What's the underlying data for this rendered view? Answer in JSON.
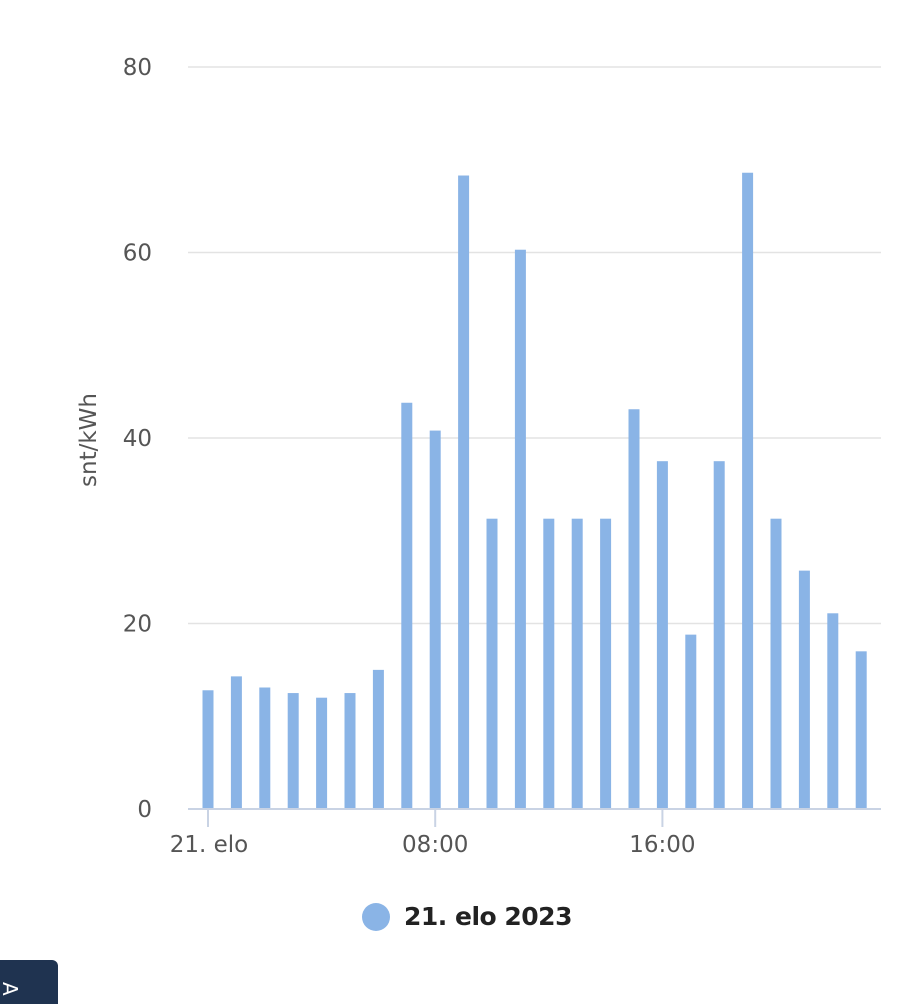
{
  "chart_data": {
    "type": "bar",
    "ylabel": "snt/kWh",
    "ylim": [
      0,
      80
    ],
    "yticks": [
      0,
      20,
      40,
      60,
      80
    ],
    "x_tick_labels": [
      {
        "hour": 0,
        "label": "21. elo"
      },
      {
        "hour": 8,
        "label": "08:00"
      },
      {
        "hour": 16,
        "label": "16:00"
      }
    ],
    "categories": [
      "00:00",
      "01:00",
      "02:00",
      "03:00",
      "04:00",
      "05:00",
      "06:00",
      "07:00",
      "08:00",
      "09:00",
      "10:00",
      "11:00",
      "12:00",
      "13:00",
      "14:00",
      "15:00",
      "16:00",
      "17:00",
      "18:00",
      "19:00",
      "20:00",
      "21:00",
      "22:00",
      "23:00"
    ],
    "series": [
      {
        "name": "21. elo 2023",
        "color": "#8ab4e6",
        "values": [
          12.8,
          14.3,
          13.1,
          12.5,
          12.0,
          12.5,
          15.0,
          43.8,
          40.8,
          68.3,
          31.3,
          60.3,
          31.3,
          31.3,
          31.3,
          43.1,
          37.5,
          18.8,
          37.5,
          68.6,
          31.3,
          25.7,
          21.1,
          17.0
        ]
      }
    ],
    "grid": true,
    "legend": "bottom-center"
  },
  "legend": {
    "label": "21. elo 2023",
    "color": "#8ab4e6"
  },
  "side_tab": {
    "label": "A",
    "color": "#1f3350"
  }
}
